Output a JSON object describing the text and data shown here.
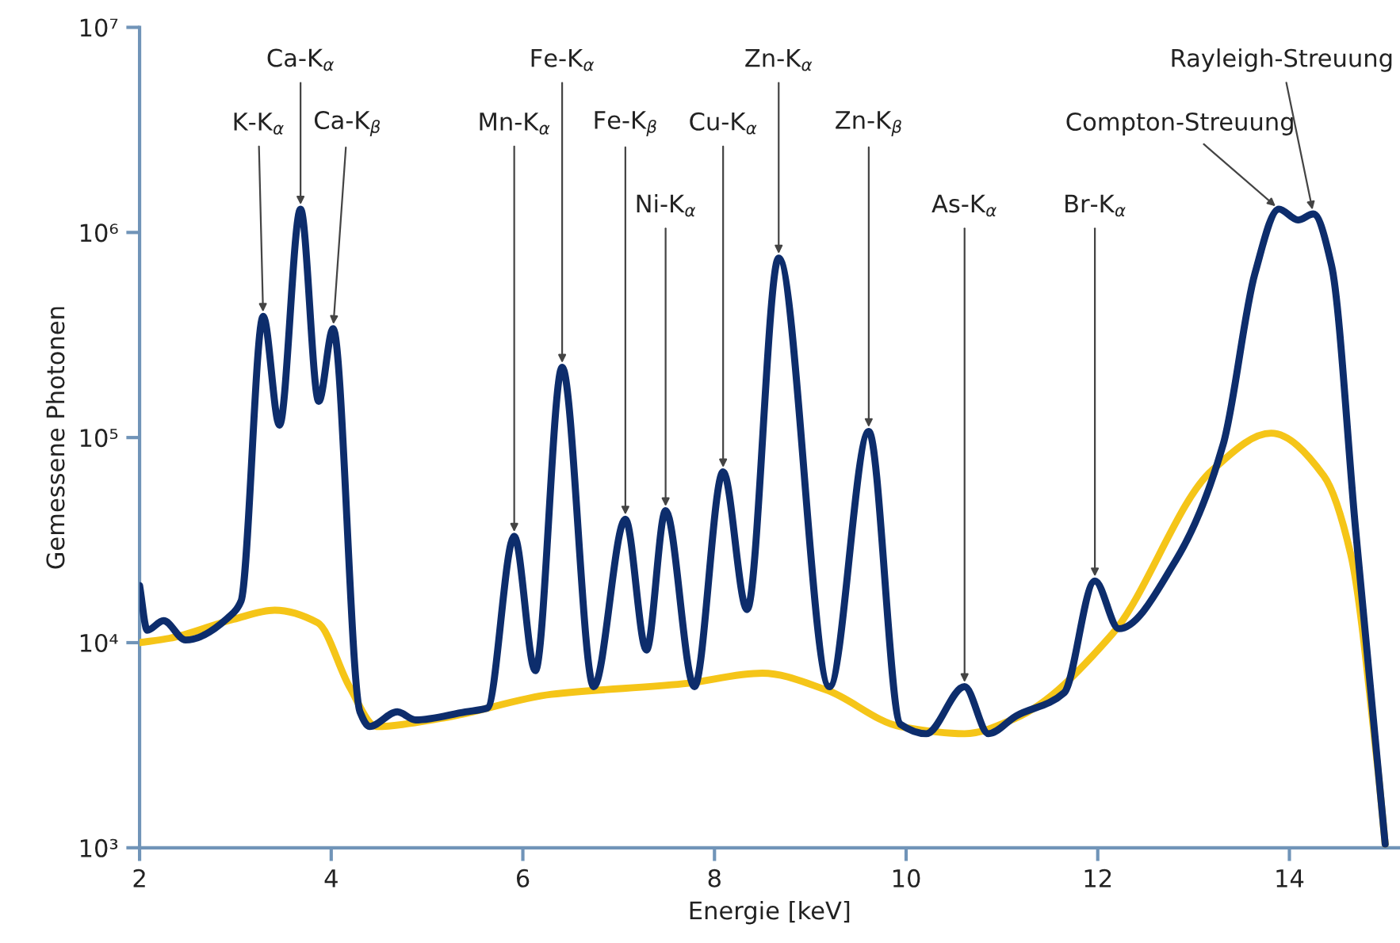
{
  "chart_data": {
    "type": "line",
    "xlabel": "Energie [keV]",
    "ylabel": "Gemessene Photonen",
    "log": "y",
    "grid": false,
    "legend": false,
    "marker": "none",
    "line_style": "solid",
    "xlim": [
      2,
      15.15
    ],
    "xticks": [
      2,
      4,
      6,
      8,
      10,
      12,
      14
    ],
    "ylim": [
      1000,
      10000000
    ],
    "yticks": [
      {
        "value": 1000,
        "label": "10³"
      },
      {
        "value": 10000,
        "label": "10⁴"
      },
      {
        "value": 100000,
        "label": "10⁵"
      },
      {
        "value": 1000000,
        "label": "10⁶"
      },
      {
        "value": 10000000,
        "label": "10⁷"
      }
    ],
    "series": [
      {
        "color": "#f5c518",
        "x": [
          2.0,
          2.31,
          2.98,
          3.41,
          3.86,
          4.19,
          4.47,
          5.18,
          6.3,
          7.67,
          8.5,
          9.16,
          9.94,
          10.61,
          11.15,
          12.15,
          13.19,
          13.81,
          14.36,
          14.64,
          14.92,
          15.0
        ],
        "values": [
          10000,
          10500,
          13000,
          14400,
          12500,
          6100,
          3900,
          4300,
          5600,
          6300,
          7100,
          5900,
          3900,
          3600,
          4300,
          11000,
          69000,
          105000,
          65000,
          27000,
          2500,
          1040
        ]
      },
      {
        "color": "#0d2d6c",
        "x": [
          2.0,
          2.08,
          2.25,
          2.48,
          2.98,
          3.06,
          3.29,
          3.46,
          3.68,
          3.87,
          4.02,
          4.3,
          4.4,
          4.69,
          4.88,
          5.4,
          5.63,
          5.91,
          6.13,
          6.41,
          6.74,
          7.07,
          7.29,
          7.49,
          7.79,
          8.09,
          8.34,
          8.67,
          9.2,
          9.61,
          9.94,
          10.21,
          10.61,
          10.86,
          11.15,
          11.65,
          11.97,
          12.22,
          12.81,
          13.31,
          13.64,
          13.89,
          14.09,
          14.25,
          14.44,
          14.69,
          15.0
        ],
        "values": [
          19000,
          11500,
          12800,
          10300,
          14000,
          16000,
          390000,
          115000,
          1300000,
          150000,
          340000,
          4600,
          3900,
          4600,
          4200,
          4600,
          4800,
          33000,
          7300,
          220000,
          6100,
          40000,
          9200,
          44000,
          6100,
          68000,
          14500,
          750000,
          6100,
          107000,
          4000,
          3600,
          6100,
          3600,
          4400,
          5700,
          20000,
          11700,
          25000,
          93000,
          630000,
          1300000,
          1150000,
          1230000,
          690000,
          36000,
          1040
        ]
      }
    ],
    "annotations": [
      {
        "text": "K-K$_{α}$",
        "x": 3.29,
        "y": 390000
      },
      {
        "text": "Ca-K$_{α}$",
        "x": 3.68,
        "y": 1300000
      },
      {
        "text": "Ca-K$_{β}$",
        "x": 4.02,
        "y": 340000
      },
      {
        "text": "Mn-K$_{α}$",
        "x": 5.91,
        "y": 33000
      },
      {
        "text": "Fe-K$_{α}$",
        "x": 6.41,
        "y": 220000
      },
      {
        "text": "Fe-K$_{β}$",
        "x": 7.07,
        "y": 40000
      },
      {
        "text": "Ni-K$_{α}$",
        "x": 7.49,
        "y": 44000
      },
      {
        "text": "Cu-K$_{α}$",
        "x": 8.09,
        "y": 68000
      },
      {
        "text": "Zn-K$_{α}$",
        "x": 8.67,
        "y": 750000
      },
      {
        "text": "Zn-K$_{β}$",
        "x": 9.61,
        "y": 107000
      },
      {
        "text": "As-K$_{α}$",
        "x": 10.61,
        "y": 6100
      },
      {
        "text": "Br-K$_{α}$",
        "x": 11.97,
        "y": 20000
      },
      {
        "text": "Compton-Streuung",
        "x": 13.89,
        "y": 1300000
      },
      {
        "text": "Rayleigh-Streuung",
        "x": 14.25,
        "y": 1230000
      }
    ]
  }
}
